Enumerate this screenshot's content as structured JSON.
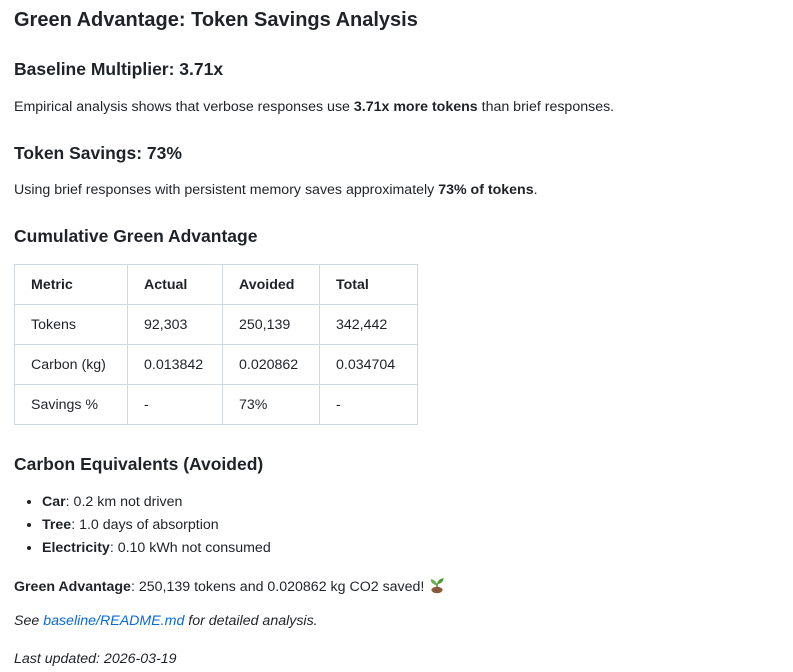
{
  "title": "Green Advantage: Token Savings Analysis",
  "baseline": {
    "heading": "Baseline Multiplier: 3.71x",
    "text_pre": "Empirical analysis shows that verbose responses use ",
    "text_bold": "3.71x more tokens",
    "text_post": " than brief responses."
  },
  "savings": {
    "heading": "Token Savings: 73%",
    "text_pre": "Using brief responses with persistent memory saves approximately ",
    "text_bold": "73% of tokens",
    "text_post": "."
  },
  "cumulative": {
    "heading": "Cumulative Green Advantage",
    "headers": [
      "Metric",
      "Actual",
      "Avoided",
      "Total"
    ],
    "rows": [
      [
        "Tokens",
        "92,303",
        "250,139",
        "342,442"
      ],
      [
        "Carbon (kg)",
        "0.013842",
        "0.020862",
        "0.034704"
      ],
      [
        "Savings %",
        "-",
        "73%",
        "-"
      ]
    ]
  },
  "equivalents": {
    "heading": "Carbon Equivalents (Avoided)",
    "items": [
      {
        "label": "Car",
        "text": ": 0.2 km not driven"
      },
      {
        "label": "Tree",
        "text": ": 1.0 days of absorption"
      },
      {
        "label": "Electricity",
        "text": ": 0.10 kWh not consumed"
      }
    ]
  },
  "green_advantage": {
    "label": "Green Advantage",
    "text": ": 250,139 tokens and 0.020862 kg CO2 saved!",
    "icon": "sprout-icon"
  },
  "see": {
    "pre": "See ",
    "link": "baseline/README.md",
    "post": " for detailed analysis."
  },
  "last_updated": "Last updated: 2026-03-19"
}
